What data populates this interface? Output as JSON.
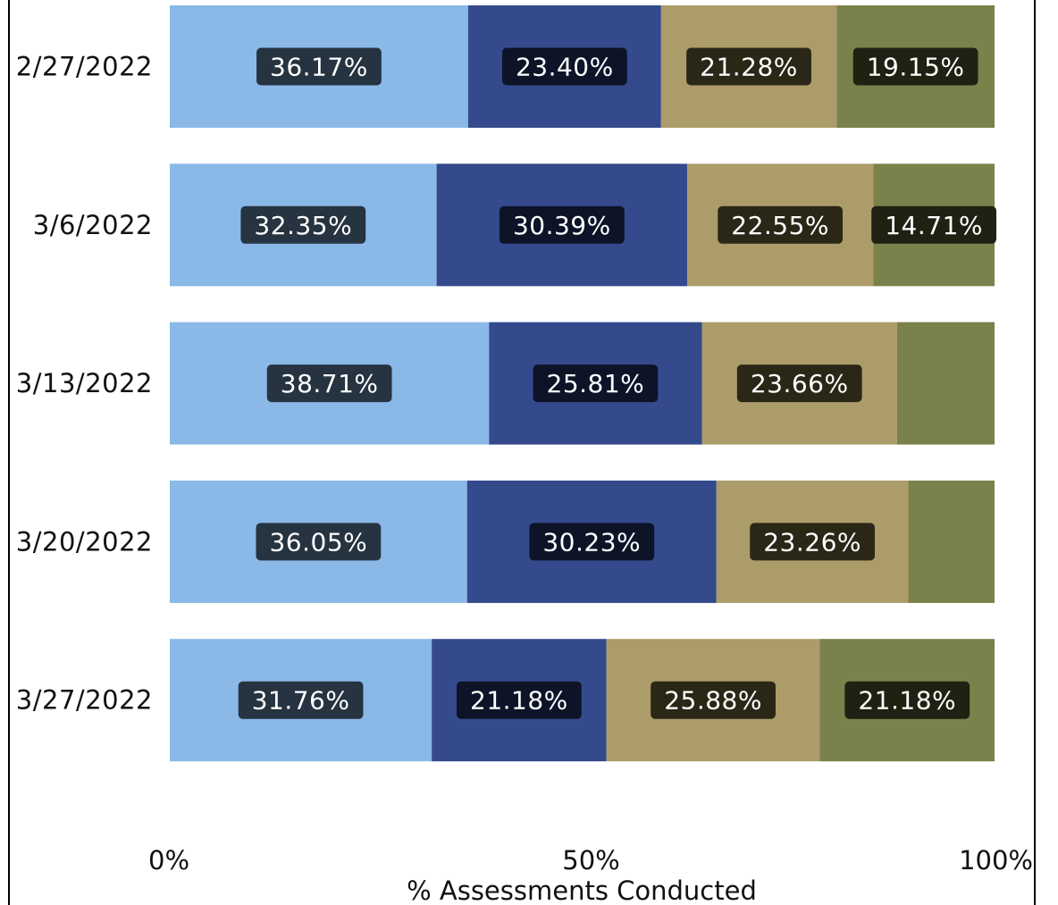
{
  "chart_data": {
    "type": "bar",
    "orientation": "horizontal",
    "stacked": "100%",
    "categories": [
      "2/27/2022",
      "3/6/2022",
      "3/13/2022",
      "3/20/2022",
      "3/27/2022"
    ],
    "series": [
      {
        "color": "#8ab9e8",
        "label_bg": "#263340",
        "values": [
          36.17,
          32.35,
          38.71,
          36.05,
          31.76
        ]
      },
      {
        "color": "#344a8c",
        "label_bg": "#0d1428",
        "values": [
          23.4,
          30.39,
          25.81,
          30.23,
          21.18
        ]
      },
      {
        "color": "#ab9c69",
        "label_bg": "#2a2717",
        "values": [
          21.28,
          22.55,
          23.66,
          23.26,
          25.88
        ]
      },
      {
        "color": "#7a814a",
        "label_bg": "#1f2112",
        "values": [
          19.15,
          14.71,
          11.82,
          10.46,
          21.18
        ]
      }
    ],
    "data_labels": [
      [
        "36.17%",
        "23.40%",
        "21.28%",
        "19.15%"
      ],
      [
        "32.35%",
        "30.39%",
        "22.55%",
        "14.71%"
      ],
      [
        "38.71%",
        "25.81%",
        "23.66%",
        ""
      ],
      [
        "36.05%",
        "30.23%",
        "23.26%",
        ""
      ],
      [
        "31.76%",
        "21.18%",
        "25.88%",
        "21.18%"
      ]
    ],
    "x_ticks": [
      "0%",
      "50%",
      "100%"
    ],
    "xlabel": "% Assessments Conducted",
    "xlim": [
      0,
      100
    ],
    "grid": false,
    "legend": "none"
  }
}
